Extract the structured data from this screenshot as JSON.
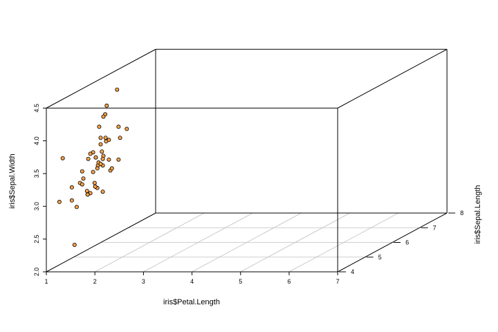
{
  "chart_data": {
    "type": "scatter",
    "projection": "3d",
    "xlabel": "iris$Petal.Length",
    "ylabel": "iris$Sepal.Length",
    "zlabel": "iris$Sepal.Width",
    "xlim": [
      1,
      7
    ],
    "ylim": [
      4,
      8
    ],
    "zlim": [
      2,
      4.5
    ],
    "x_ticks": [
      "1",
      "2",
      "3",
      "4",
      "5",
      "6",
      "7"
    ],
    "y_ticks": [
      "4",
      "5",
      "6",
      "7",
      "8"
    ],
    "z_ticks": [
      "2.0",
      "2.5",
      "3.0",
      "3.5",
      "4.0",
      "4.5"
    ],
    "grid": true,
    "colors": {
      "point_fill": "#f7a34a",
      "point_stroke": "#000000",
      "box": "#000000",
      "grid": "#bfbfbf"
    },
    "points": [
      {
        "x": 1.4,
        "y": 5.1,
        "z": 3.5
      },
      {
        "x": 1.4,
        "y": 4.9,
        "z": 3.0
      },
      {
        "x": 1.3,
        "y": 4.7,
        "z": 3.2
      },
      {
        "x": 1.5,
        "y": 4.6,
        "z": 3.1
      },
      {
        "x": 1.4,
        "y": 5.0,
        "z": 3.6
      },
      {
        "x": 1.7,
        "y": 5.4,
        "z": 3.9
      },
      {
        "x": 1.4,
        "y": 4.6,
        "z": 3.4
      },
      {
        "x": 1.5,
        "y": 5.0,
        "z": 3.4
      },
      {
        "x": 1.4,
        "y": 4.4,
        "z": 2.9
      },
      {
        "x": 1.5,
        "y": 4.9,
        "z": 3.1
      },
      {
        "x": 1.5,
        "y": 5.4,
        "z": 3.7
      },
      {
        "x": 1.6,
        "y": 4.8,
        "z": 3.4
      },
      {
        "x": 1.4,
        "y": 4.8,
        "z": 3.0
      },
      {
        "x": 1.1,
        "y": 4.3,
        "z": 3.0
      },
      {
        "x": 1.2,
        "y": 5.8,
        "z": 4.0
      },
      {
        "x": 1.5,
        "y": 5.7,
        "z": 4.4
      },
      {
        "x": 1.3,
        "y": 5.4,
        "z": 3.9
      },
      {
        "x": 1.4,
        "y": 5.1,
        "z": 3.5
      },
      {
        "x": 1.7,
        "y": 5.7,
        "z": 3.8
      },
      {
        "x": 1.5,
        "y": 5.1,
        "z": 3.8
      },
      {
        "x": 1.7,
        "y": 5.4,
        "z": 3.4
      },
      {
        "x": 1.5,
        "y": 5.1,
        "z": 3.7
      },
      {
        "x": 1.0,
        "y": 4.6,
        "z": 3.6
      },
      {
        "x": 1.7,
        "y": 5.1,
        "z": 3.3
      },
      {
        "x": 1.9,
        "y": 4.8,
        "z": 3.4
      },
      {
        "x": 1.6,
        "y": 5.0,
        "z": 3.0
      },
      {
        "x": 1.6,
        "y": 5.0,
        "z": 3.4
      },
      {
        "x": 1.5,
        "y": 5.2,
        "z": 3.5
      },
      {
        "x": 1.4,
        "y": 5.2,
        "z": 3.4
      },
      {
        "x": 1.6,
        "y": 4.7,
        "z": 3.2
      },
      {
        "x": 1.6,
        "y": 4.8,
        "z": 3.1
      },
      {
        "x": 1.5,
        "y": 5.4,
        "z": 3.4
      },
      {
        "x": 1.5,
        "y": 5.2,
        "z": 4.1
      },
      {
        "x": 1.4,
        "y": 5.5,
        "z": 4.2
      },
      {
        "x": 1.5,
        "y": 4.9,
        "z": 3.1
      },
      {
        "x": 1.2,
        "y": 5.0,
        "z": 3.2
      },
      {
        "x": 1.3,
        "y": 5.5,
        "z": 3.5
      },
      {
        "x": 1.4,
        "y": 4.9,
        "z": 3.6
      },
      {
        "x": 1.3,
        "y": 4.4,
        "z": 3.0
      },
      {
        "x": 1.5,
        "y": 5.1,
        "z": 3.4
      },
      {
        "x": 1.3,
        "y": 5.0,
        "z": 3.5
      },
      {
        "x": 1.3,
        "y": 4.5,
        "z": 2.3
      },
      {
        "x": 1.3,
        "y": 4.4,
        "z": 3.2
      },
      {
        "x": 1.6,
        "y": 5.0,
        "z": 3.5
      },
      {
        "x": 1.9,
        "y": 5.1,
        "z": 3.8
      },
      {
        "x": 1.4,
        "y": 4.8,
        "z": 3.0
      },
      {
        "x": 1.6,
        "y": 5.1,
        "z": 3.8
      },
      {
        "x": 1.4,
        "y": 4.6,
        "z": 3.2
      },
      {
        "x": 1.5,
        "y": 5.3,
        "z": 3.7
      },
      {
        "x": 1.4,
        "y": 5.0,
        "z": 3.3
      }
    ]
  }
}
